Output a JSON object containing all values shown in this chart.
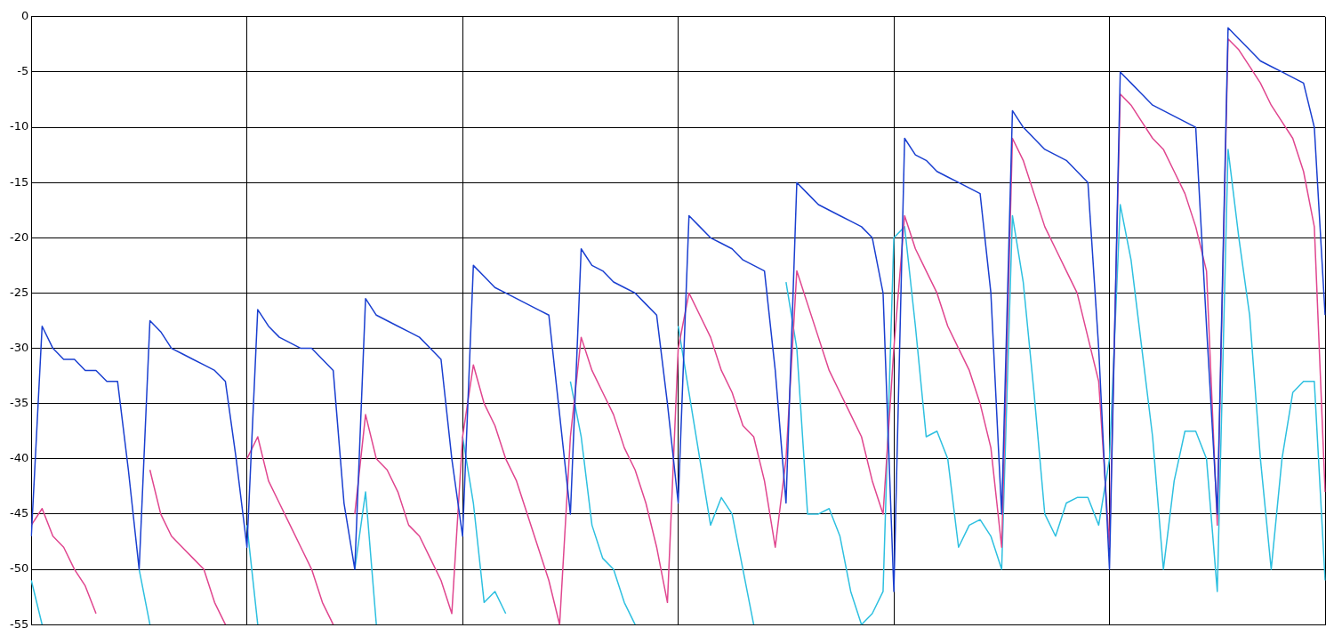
{
  "chart_data": {
    "type": "line",
    "categories": [
      null,
      null,
      null,
      null,
      null,
      null,
      null,
      null,
      null,
      null,
      null,
      null,
      null,
      null,
      null,
      null,
      null,
      null,
      null,
      null,
      null,
      null,
      null,
      null,
      null,
      null,
      null,
      null,
      null,
      null,
      null,
      null,
      null,
      null,
      null,
      null,
      null,
      null,
      null,
      null,
      null,
      null,
      null,
      null,
      null,
      null,
      null,
      null,
      null,
      null,
      null,
      null,
      null,
      null,
      null,
      null,
      null,
      null,
      null,
      null,
      null,
      null,
      null,
      null,
      null,
      null,
      null,
      null,
      null,
      null,
      null,
      null,
      null,
      null,
      null,
      null,
      null,
      null,
      null,
      null,
      null,
      null,
      null,
      null,
      null,
      null,
      null,
      null,
      null,
      null,
      null,
      null,
      null,
      null,
      null,
      null,
      null,
      null,
      null,
      null,
      null,
      null,
      null,
      null,
      null,
      null,
      null,
      null,
      null,
      null,
      null,
      null,
      null,
      null,
      null,
      null,
      null,
      null,
      null,
      null,
      null
    ],
    "series": [
      {
        "color": "#1a3fd0",
        "values": [
          -47,
          -28,
          -30,
          -31,
          -31,
          -32,
          -32,
          -33,
          -33,
          -41,
          -50,
          -27.5,
          -28.5,
          -30,
          -30.5,
          -31,
          -31.5,
          -32,
          -33,
          -40,
          -48,
          -26.5,
          -28,
          -29,
          -29.5,
          -30,
          -30,
          -31,
          -32,
          -44,
          -50,
          -25.5,
          -27,
          -27.5,
          -28,
          -28.5,
          -29,
          -30,
          -31,
          -40,
          -47,
          -22.5,
          -23.5,
          -24.5,
          -25,
          -25.5,
          -26,
          -26.5,
          -27,
          -36,
          -45,
          -21,
          -22.5,
          -23,
          -24,
          -24.5,
          -25,
          -26,
          -27,
          -35,
          -44,
          -18,
          -19,
          -20,
          -20.5,
          -21,
          -22,
          -22.5,
          -23,
          -32,
          -44,
          -15,
          -16,
          -17,
          -17.5,
          -18,
          -18.5,
          -19,
          -20,
          -25,
          -52,
          -11,
          -12.5,
          -13,
          -14,
          -14.5,
          -15,
          -15.5,
          -16,
          -25,
          -45,
          -8.5,
          -10,
          -11,
          -12,
          -12.5,
          -13,
          -14,
          -15,
          -30,
          -50,
          -5,
          -6,
          -7,
          -8,
          -8.5,
          -9,
          -9.5,
          -10,
          -28,
          -45,
          -1,
          -2,
          -3,
          -4,
          -4.5,
          -5,
          -5.5,
          -6,
          -10,
          -27
        ]
      },
      {
        "color": "#e0468f",
        "values": [
          -46,
          -44.5,
          -47,
          -48,
          -50,
          -51.5,
          -54,
          null,
          null,
          null,
          null,
          -41,
          -45,
          -47,
          -48,
          -49,
          -50,
          -53,
          -55,
          null,
          -40,
          -38,
          -42,
          -44,
          -46,
          -48,
          -50,
          -53,
          -55,
          null,
          -45,
          -36,
          -40,
          -41,
          -43,
          -46,
          -47,
          -49,
          -51,
          -54,
          -38,
          -31.5,
          -35,
          -37,
          -40,
          -42,
          -45,
          -48,
          -51,
          -55,
          -38,
          -29,
          -32,
          -34,
          -36,
          -39,
          -41,
          -44,
          -48,
          -53,
          -30,
          -25,
          -27,
          -29,
          -32,
          -34,
          -37,
          -38,
          -42,
          -48,
          -40,
          -23,
          -26,
          -29,
          -32,
          -34,
          -36,
          -38,
          -42,
          -45,
          -30,
          -18,
          -21,
          -23,
          -25,
          -28,
          -30,
          -32,
          -35,
          -39,
          -48,
          -11,
          -13,
          -16,
          -19,
          -21,
          -23,
          -25,
          -29,
          -33,
          -48,
          -7,
          -8,
          -9.5,
          -11,
          -12,
          -14,
          -16,
          -19,
          -23,
          -46,
          -2,
          -3,
          -4.5,
          -6,
          -8,
          -9.5,
          -11,
          -14,
          -19,
          -43
        ]
      },
      {
        "color": "#2ec0e0",
        "values": [
          -51,
          -55,
          null,
          null,
          null,
          null,
          null,
          null,
          null,
          null,
          -50,
          -55,
          null,
          null,
          null,
          null,
          null,
          null,
          null,
          null,
          -46,
          -55,
          null,
          null,
          null,
          null,
          null,
          null,
          null,
          null,
          -50,
          -43,
          -55,
          null,
          null,
          null,
          null,
          null,
          null,
          null,
          -38,
          -44,
          -53,
          -52,
          -54,
          null,
          null,
          null,
          null,
          null,
          -33,
          -38,
          -46,
          -49,
          -50,
          -53,
          -55,
          null,
          null,
          null,
          -28,
          -34,
          -40,
          -46,
          -43.5,
          -45,
          -50,
          -55,
          null,
          null,
          -24,
          -30,
          -45,
          -45,
          -44.5,
          -47,
          -52,
          -55,
          -54,
          -52,
          -20,
          -19,
          -28,
          -38,
          -37.5,
          -40,
          -48,
          -46,
          -45.5,
          -47,
          -50,
          -18,
          -24,
          -34,
          -45,
          -47,
          -44,
          -43.5,
          -43.5,
          -46,
          -40,
          -17,
          -22,
          -30,
          -38,
          -50,
          -42,
          -37.5,
          -37.5,
          -40,
          -52,
          -12,
          -20,
          -27,
          -40,
          -50,
          -40,
          -34,
          -33,
          -33,
          -51
        ]
      }
    ],
    "ylim": [
      -55,
      0
    ],
    "yticks": [
      0,
      -5,
      -10,
      -15,
      -20,
      -25,
      -30,
      -35,
      -40,
      -45,
      -50,
      -55
    ],
    "grid": true,
    "legend": false
  }
}
